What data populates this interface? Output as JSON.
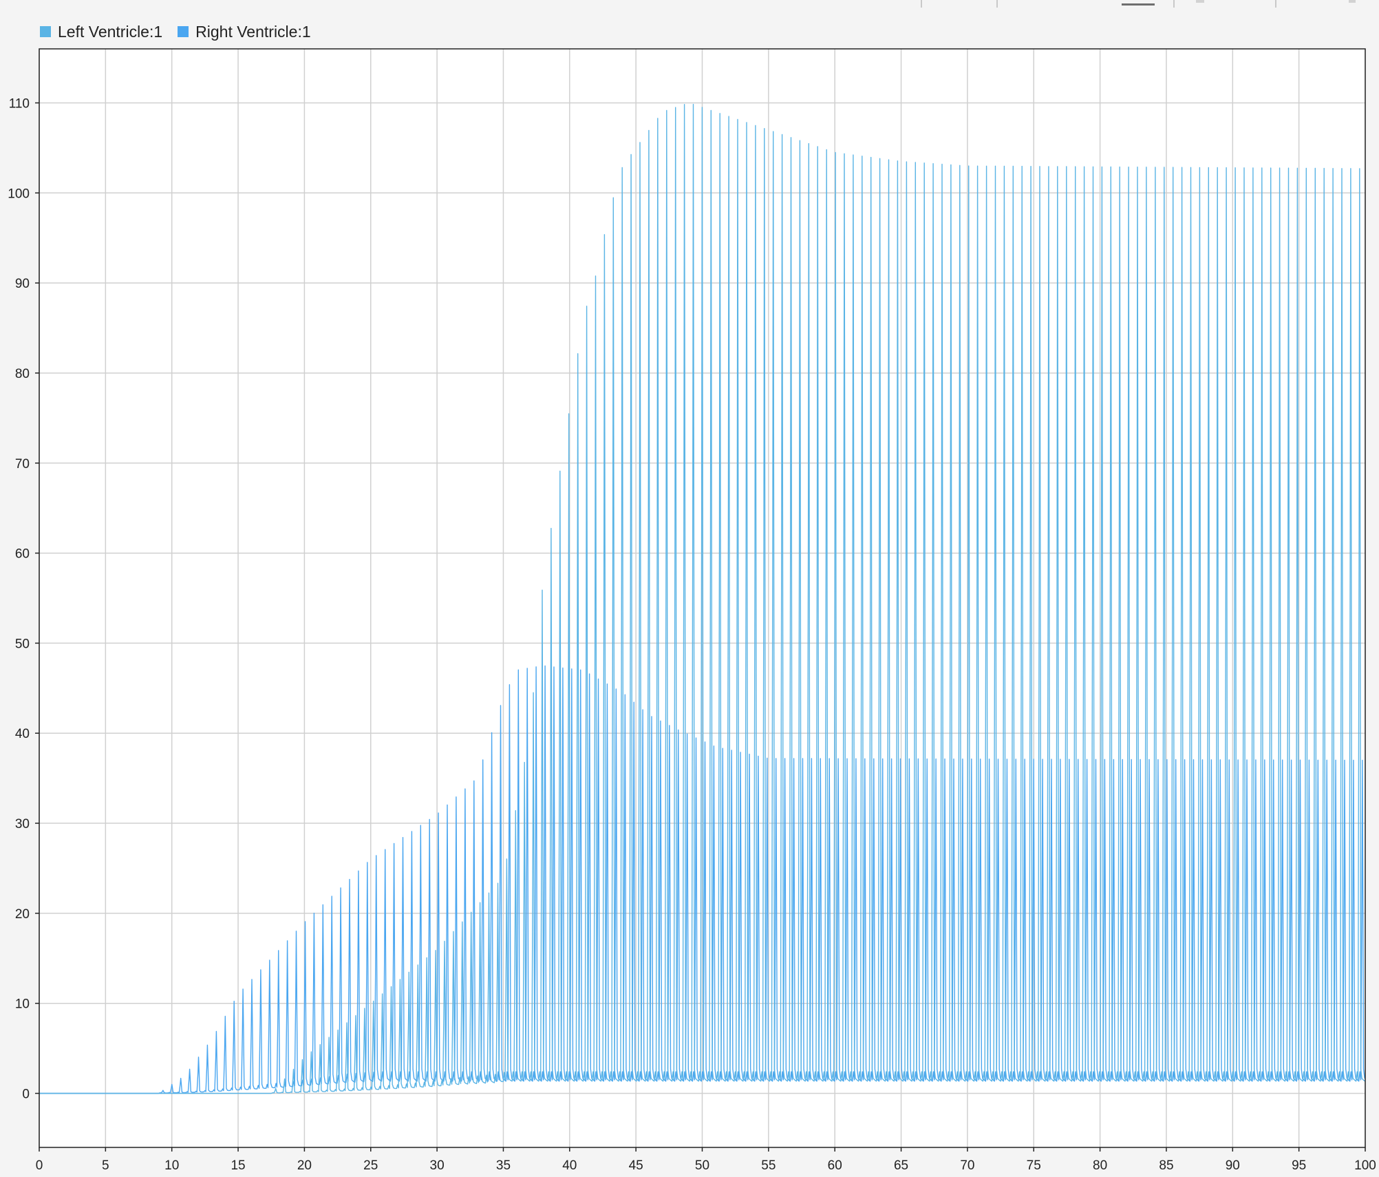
{
  "chart_data": {
    "type": "line",
    "title": "",
    "xlabel": "",
    "ylabel": "",
    "xlim": [
      0,
      100
    ],
    "ylim": [
      -6,
      116
    ],
    "grid": true,
    "legend_placement": "top-left",
    "x_ticks": [
      0,
      5,
      10,
      15,
      20,
      25,
      30,
      35,
      40,
      45,
      50,
      55,
      60,
      65,
      70,
      75,
      80,
      85,
      90,
      95,
      100
    ],
    "y_ticks": [
      0,
      10,
      20,
      30,
      40,
      50,
      60,
      70,
      80,
      90,
      100,
      110
    ],
    "series": [
      {
        "name": "Left Ventricle:1",
        "color": "#5ab4e5",
        "onset_time": 17.5,
        "period": 0.67,
        "baseline_final": 1.5,
        "peak_envelope": [
          {
            "t": 17.5,
            "v": 0
          },
          {
            "t": 20,
            "v": 4
          },
          {
            "t": 25,
            "v": 10
          },
          {
            "t": 30,
            "v": 16
          },
          {
            "t": 35,
            "v": 24
          },
          {
            "t": 37,
            "v": 40
          },
          {
            "t": 38,
            "v": 57
          },
          {
            "t": 40,
            "v": 76
          },
          {
            "t": 41,
            "v": 86
          },
          {
            "t": 42,
            "v": 91
          },
          {
            "t": 43,
            "v": 98
          },
          {
            "t": 44,
            "v": 103
          },
          {
            "t": 45,
            "v": 105
          },
          {
            "t": 47,
            "v": 109
          },
          {
            "t": 49,
            "v": 110
          },
          {
            "t": 51,
            "v": 109
          },
          {
            "t": 55,
            "v": 107
          },
          {
            "t": 60,
            "v": 104.5
          },
          {
            "t": 65,
            "v": 103.5
          },
          {
            "t": 70,
            "v": 103
          },
          {
            "t": 100,
            "v": 102.7
          }
        ]
      },
      {
        "name": "Right Ventricle:1",
        "color": "#4aa6f0",
        "onset_time": 9,
        "period": 0.67,
        "baseline_final": 1.5,
        "peak_envelope": [
          {
            "t": 9,
            "v": 0
          },
          {
            "t": 11,
            "v": 2
          },
          {
            "t": 13,
            "v": 6
          },
          {
            "t": 15,
            "v": 11
          },
          {
            "t": 20,
            "v": 19
          },
          {
            "t": 25,
            "v": 26
          },
          {
            "t": 30,
            "v": 31
          },
          {
            "t": 33,
            "v": 35
          },
          {
            "t": 35,
            "v": 44
          },
          {
            "t": 36,
            "v": 47
          },
          {
            "t": 38,
            "v": 47.5
          },
          {
            "t": 41,
            "v": 47
          },
          {
            "t": 44,
            "v": 44.5
          },
          {
            "t": 46,
            "v": 42
          },
          {
            "t": 48,
            "v": 40.5
          },
          {
            "t": 51,
            "v": 38.5
          },
          {
            "t": 55,
            "v": 37.2
          },
          {
            "t": 100,
            "v": 37
          }
        ]
      }
    ]
  },
  "legend": {
    "items": [
      {
        "label": "Left Ventricle:1",
        "color": "#5ab4e5"
      },
      {
        "label": "Right Ventricle:1",
        "color": "#4aa6f0"
      }
    ]
  }
}
